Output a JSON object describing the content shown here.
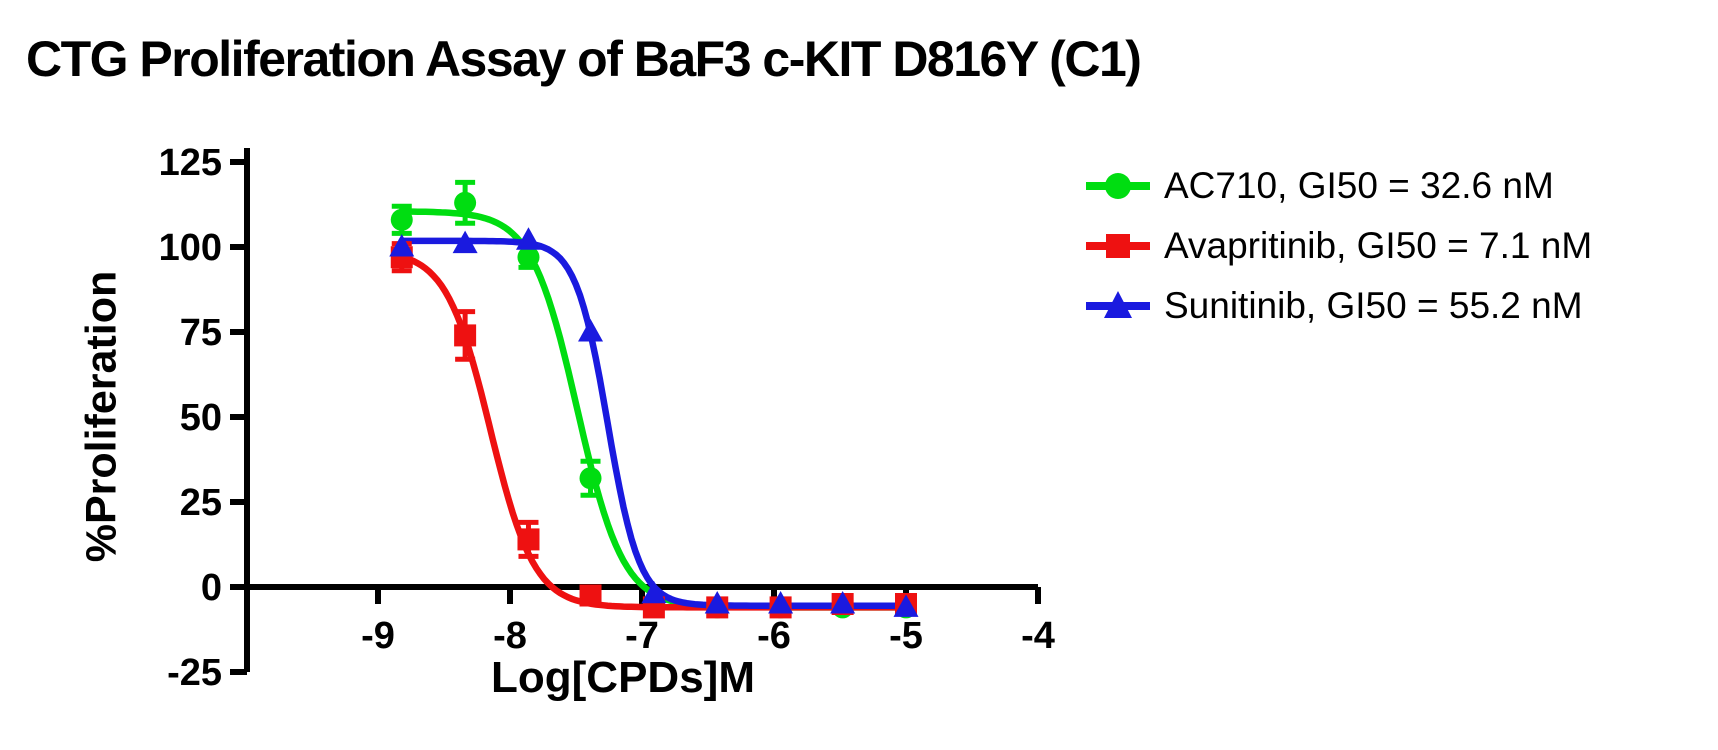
{
  "title": "CTG Proliferation Assay of BaF3 c-KIT D816Y (C1)",
  "axes": {
    "x_label": "Log[CPDs]M",
    "y_label": "%Proliferation"
  },
  "chart_data": {
    "type": "line",
    "title": "CTG Proliferation Assay of BaF3 c-KIT D816Y (C1)",
    "xlabel": "Log[CPDs]M",
    "ylabel": "%Proliferation",
    "x_ticks": [
      -9,
      -8,
      -7,
      -6,
      -5,
      -4
    ],
    "y_ticks": [
      125,
      100,
      75,
      50,
      25,
      0,
      -25
    ],
    "x_axis_range": [
      -10,
      -4
    ],
    "y_axis_range": [
      -25,
      125
    ],
    "grid": false,
    "legend_position": "right",
    "x": [
      -8.82,
      -8.34,
      -7.86,
      -7.39,
      -6.91,
      -6.43,
      -5.95,
      -5.48,
      -5.0
    ],
    "series": [
      {
        "name": "AC710",
        "legend_label": "AC710, GI50 = 32.6 nM",
        "gi50_nM": 32.6,
        "color": "#00DD11",
        "marker": "circle",
        "values": [
          108,
          113,
          97,
          32,
          -5,
          -6,
          -6,
          -6,
          -6
        ],
        "errors": [
          4,
          6,
          3,
          5,
          0,
          0,
          0,
          0,
          0
        ],
        "fit": {
          "top": 110.5,
          "bottom": -6,
          "logec50": -7.49,
          "hill": 2.5
        }
      },
      {
        "name": "Avapritinib",
        "legend_label": "Avapritinib, GI50 = 7.1 nM",
        "gi50_nM": 7.1,
        "color": "#EE1111",
        "marker": "square",
        "values": [
          97,
          74,
          14,
          -2.5,
          -6,
          -6,
          -6,
          -5,
          -5
        ],
        "errors": [
          4,
          7,
          5,
          0,
          0,
          0,
          0,
          0,
          0
        ],
        "fit": {
          "top": 99,
          "bottom": -6,
          "logec50": -8.15,
          "hill": 2.6
        }
      },
      {
        "name": "Sunitinib",
        "legend_label": "Sunitinib, GI50 = 55.2 nM",
        "gi50_nM": 55.2,
        "color": "#1A1ADF",
        "marker": "triangle",
        "values": [
          100,
          101,
          102,
          75,
          -2,
          -5,
          -5,
          -5,
          -6
        ],
        "errors": [
          0,
          0,
          0,
          0,
          0,
          0,
          0,
          0,
          0
        ],
        "fit": {
          "top": 101.8,
          "bottom": -5.5,
          "logec50": -7.26,
          "hill": 3.6
        }
      }
    ]
  }
}
